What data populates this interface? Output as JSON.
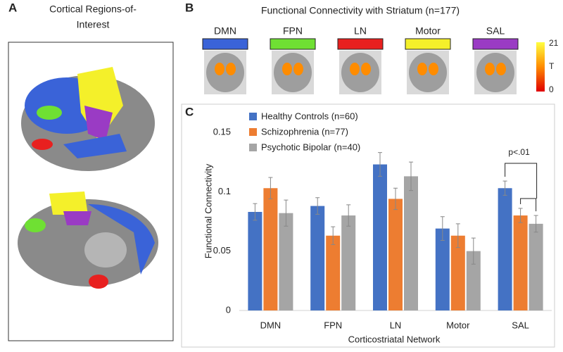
{
  "panels": {
    "a": {
      "letter": "A",
      "title_lines": [
        "Cortical Regions-of-",
        "Interest"
      ]
    },
    "b": {
      "letter": "B",
      "title": "Functional Connectivity with Striatum (n=177)",
      "networks": [
        {
          "label": "DMN",
          "color": "#3a63d8"
        },
        {
          "label": "FPN",
          "color": "#6fe033"
        },
        {
          "label": "LN",
          "color": "#e8201f"
        },
        {
          "label": "Motor",
          "color": "#f4f02a"
        },
        {
          "label": "SAL",
          "color": "#9a3bc4"
        }
      ],
      "colorbar": {
        "max": 21,
        "min": 0,
        "label": "T"
      }
    },
    "c": {
      "letter": "C"
    }
  },
  "chart_data": {
    "type": "bar",
    "x_label": "Corticostriatal Network",
    "y_label": "Functional Connectivity",
    "categories": [
      "DMN",
      "FPN",
      "LN",
      "Motor",
      "SAL"
    ],
    "series": [
      {
        "name": "Healthy Controls (n=60)",
        "color": "#4472c4",
        "values": [
          0.083,
          0.088,
          0.123,
          0.069,
          0.103
        ],
        "errors": [
          0.007,
          0.007,
          0.01,
          0.01,
          0.006
        ]
      },
      {
        "name": "Schizophrenia (n=77)",
        "color": "#ed7d31",
        "values": [
          0.103,
          0.063,
          0.094,
          0.063,
          0.08
        ],
        "errors": [
          0.009,
          0.0075,
          0.009,
          0.01,
          0.006
        ]
      },
      {
        "name": "Psychotic Bipolar (n=40)",
        "color": "#a5a5a5",
        "values": [
          0.082,
          0.08,
          0.113,
          0.05,
          0.073
        ],
        "errors": [
          0.011,
          0.009,
          0.012,
          0.011,
          0.007
        ]
      }
    ],
    "ylim": [
      0,
      0.15
    ],
    "yticks": [
      0,
      0.05,
      0.1,
      0.15
    ],
    "annotation": "p<.01"
  }
}
